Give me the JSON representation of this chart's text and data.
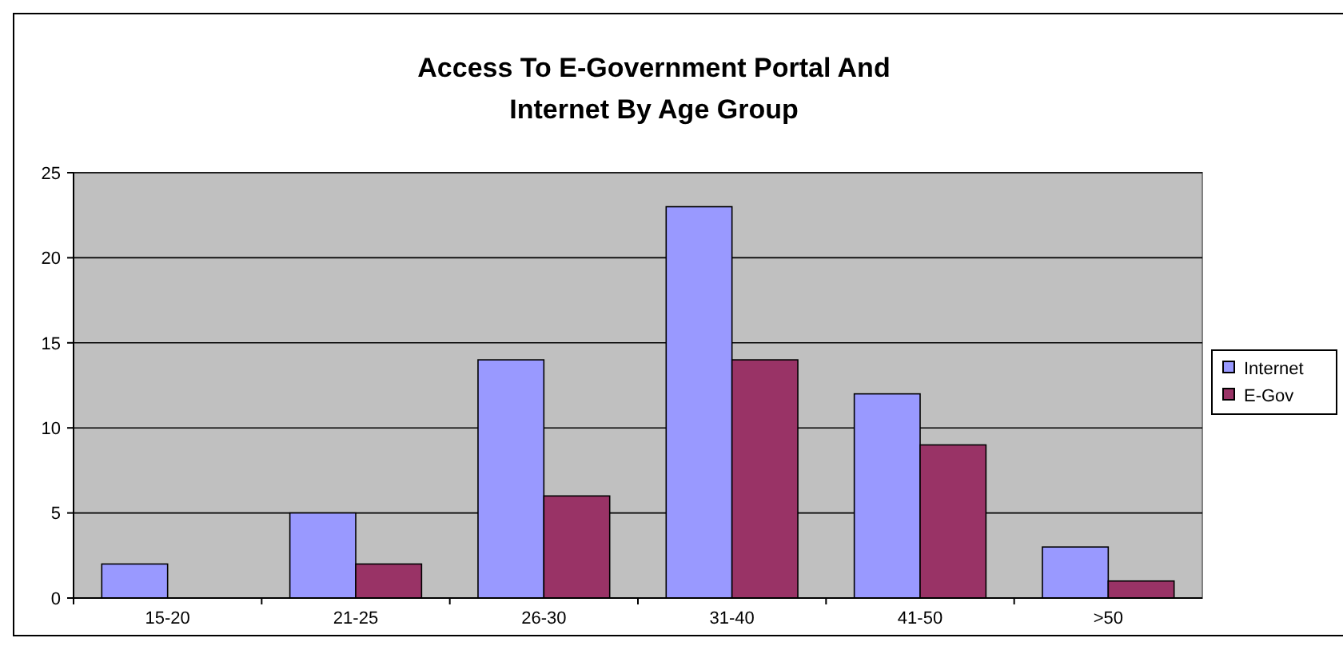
{
  "chart_data": {
    "type": "bar",
    "title": "Access To E-Government Portal And Internet By Age Group",
    "categories": [
      "15-20",
      "21-25",
      "26-30",
      "31-40",
      "41-50",
      ">50"
    ],
    "series": [
      {
        "name": "Internet",
        "color": "#9999ff",
        "values": [
          2,
          5,
          14,
          23,
          12,
          3
        ]
      },
      {
        "name": "E-Gov",
        "color": "#993366",
        "values": [
          null,
          2,
          6,
          14,
          9,
          1
        ]
      }
    ],
    "ylim": [
      0,
      25
    ],
    "yticks": [
      0,
      5,
      10,
      15,
      20,
      25
    ],
    "grid": "y",
    "legend": "right"
  }
}
